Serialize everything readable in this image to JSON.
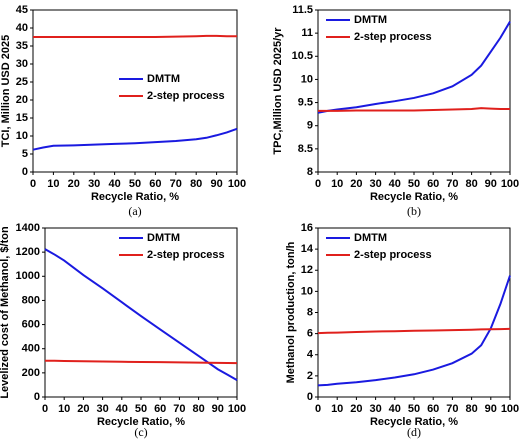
{
  "chart_data": [
    {
      "type": "line",
      "caption": "(a)",
      "x_label": "Recycle Ratio, %",
      "y_label": "TCI, Million USD 2025",
      "x": [
        0,
        5,
        10,
        20,
        30,
        40,
        50,
        60,
        70,
        80,
        85,
        90,
        95,
        100
      ],
      "series": [
        {
          "name": "DMTM",
          "color": "#1a1ae0",
          "values": [
            6.2,
            6.8,
            7.3,
            7.4,
            7.6,
            7.8,
            8.0,
            8.3,
            8.6,
            9.1,
            9.5,
            10.2,
            11.0,
            12.0
          ]
        },
        {
          "name": "2-step process",
          "color": "#e0201c",
          "values": [
            37.5,
            37.5,
            37.5,
            37.5,
            37.5,
            37.5,
            37.5,
            37.5,
            37.6,
            37.7,
            37.8,
            37.8,
            37.7,
            37.7
          ]
        }
      ],
      "xlim": [
        0,
        100
      ],
      "xticks": [
        0,
        10,
        20,
        30,
        40,
        50,
        60,
        70,
        80,
        90,
        100
      ],
      "ylim": [
        0,
        45
      ],
      "yticks": [
        0,
        5,
        10,
        15,
        20,
        25,
        30,
        35,
        40,
        45
      ],
      "legend": "center right"
    },
    {
      "type": "line",
      "caption": "(b)",
      "x_label": "Recycle Ratio, %",
      "y_label": "TPC,Million USD 2025/yr",
      "x": [
        0,
        5,
        10,
        20,
        30,
        40,
        50,
        60,
        70,
        80,
        85,
        90,
        95,
        100
      ],
      "series": [
        {
          "name": "DMTM",
          "color": "#1a1ae0",
          "values": [
            9.28,
            9.32,
            9.35,
            9.4,
            9.47,
            9.53,
            9.6,
            9.7,
            9.85,
            10.1,
            10.3,
            10.6,
            10.9,
            11.25
          ]
        },
        {
          "name": "2-step process",
          "color": "#e0201c",
          "values": [
            9.32,
            9.32,
            9.32,
            9.33,
            9.33,
            9.33,
            9.33,
            9.34,
            9.35,
            9.36,
            9.38,
            9.37,
            9.36,
            9.36
          ]
        }
      ],
      "xlim": [
        0,
        100
      ],
      "xticks": [
        0,
        10,
        20,
        30,
        40,
        50,
        60,
        70,
        80,
        90,
        100
      ],
      "ylim": [
        8,
        11.5
      ],
      "yticks": [
        8,
        8.5,
        9,
        9.5,
        10,
        10.5,
        11,
        11.5
      ],
      "legend": "upper left"
    },
    {
      "type": "line",
      "caption": "(c)",
      "x_label": "Recycle Ratio, %",
      "y_label": "Levelized cost of Methanol, $/ton",
      "x": [
        0,
        5,
        10,
        20,
        30,
        40,
        50,
        60,
        70,
        80,
        85,
        90,
        95,
        100
      ],
      "series": [
        {
          "name": "DMTM",
          "color": "#1a1ae0",
          "values": [
            1225,
            1180,
            1130,
            1010,
            900,
            785,
            670,
            560,
            450,
            340,
            285,
            230,
            185,
            140
          ]
        },
        {
          "name": "2-step process",
          "color": "#e0201c",
          "values": [
            300,
            300,
            298,
            296,
            294,
            292,
            290,
            289,
            287,
            285,
            284,
            283,
            282,
            281
          ]
        }
      ],
      "xlim": [
        0,
        100
      ],
      "xticks": [
        0,
        10,
        20,
        30,
        40,
        50,
        60,
        70,
        80,
        90,
        100
      ],
      "ylim": [
        0,
        1400
      ],
      "yticks": [
        0,
        200,
        400,
        600,
        800,
        1000,
        1200,
        1400
      ],
      "legend": "upper right"
    },
    {
      "type": "line",
      "caption": "(d)",
      "x_label": "Recycle Ratio, %",
      "y_label": "Methanol production, ton/h",
      "x": [
        0,
        5,
        10,
        20,
        30,
        40,
        50,
        60,
        70,
        80,
        85,
        90,
        95,
        100
      ],
      "series": [
        {
          "name": "DMTM",
          "color": "#1a1ae0",
          "values": [
            1.1,
            1.15,
            1.25,
            1.4,
            1.6,
            1.85,
            2.15,
            2.6,
            3.2,
            4.1,
            4.9,
            6.5,
            8.8,
            11.5
          ]
        },
        {
          "name": "2-step process",
          "color": "#e0201c",
          "values": [
            6.05,
            6.08,
            6.1,
            6.15,
            6.2,
            6.23,
            6.27,
            6.3,
            6.33,
            6.37,
            6.4,
            6.42,
            6.43,
            6.45
          ]
        }
      ],
      "xlim": [
        0,
        100
      ],
      "xticks": [
        0,
        10,
        20,
        30,
        40,
        50,
        60,
        70,
        80,
        90,
        100
      ],
      "ylim": [
        0,
        16
      ],
      "yticks": [
        0,
        2,
        4,
        6,
        8,
        10,
        12,
        14,
        16
      ],
      "legend": "upper left"
    }
  ]
}
